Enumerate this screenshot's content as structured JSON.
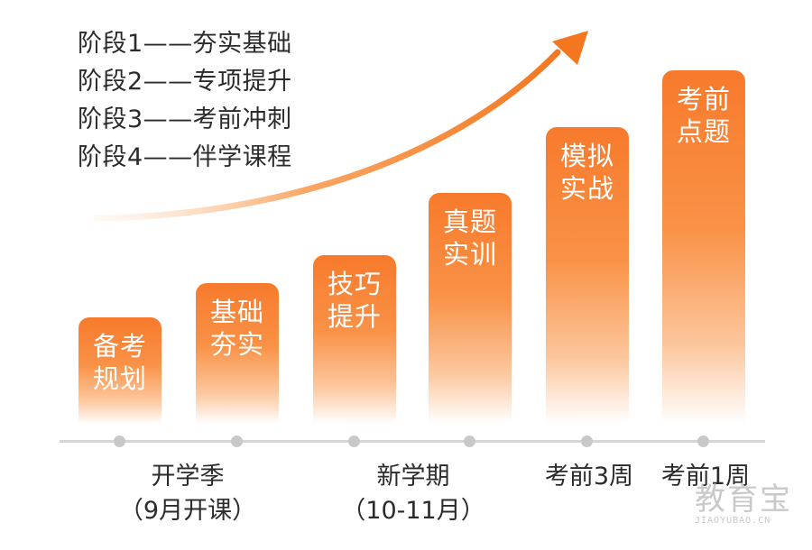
{
  "stages": [
    "阶段1——夯实基础",
    "阶段2——专项提升",
    "阶段3——考前冲刺",
    "阶段4——伴学课程"
  ],
  "bars": [
    {
      "line1": "备考",
      "line2": "规划"
    },
    {
      "line1": "基础",
      "line2": "夯实"
    },
    {
      "line1": "技巧",
      "line2": "提升"
    },
    {
      "line1": "真题",
      "line2": "实训"
    },
    {
      "line1": "模拟",
      "line2": "实战"
    },
    {
      "line1": "考前",
      "line2": "点题"
    }
  ],
  "timeline": [
    {
      "line1": "开学季",
      "line2": "（9月开课）"
    },
    {
      "line1": "新学期",
      "line2": "（10-11月）"
    },
    {
      "line1": "考前3周",
      "line2": ""
    },
    {
      "line1": "考前1周",
      "line2": ""
    }
  ],
  "watermark": {
    "main": "教育宝",
    "sub": "JIAOYUBAO.CN"
  },
  "colors": {
    "accent": "#f77a2c",
    "axis": "#d6d6d6",
    "text": "#2b2b2b"
  }
}
